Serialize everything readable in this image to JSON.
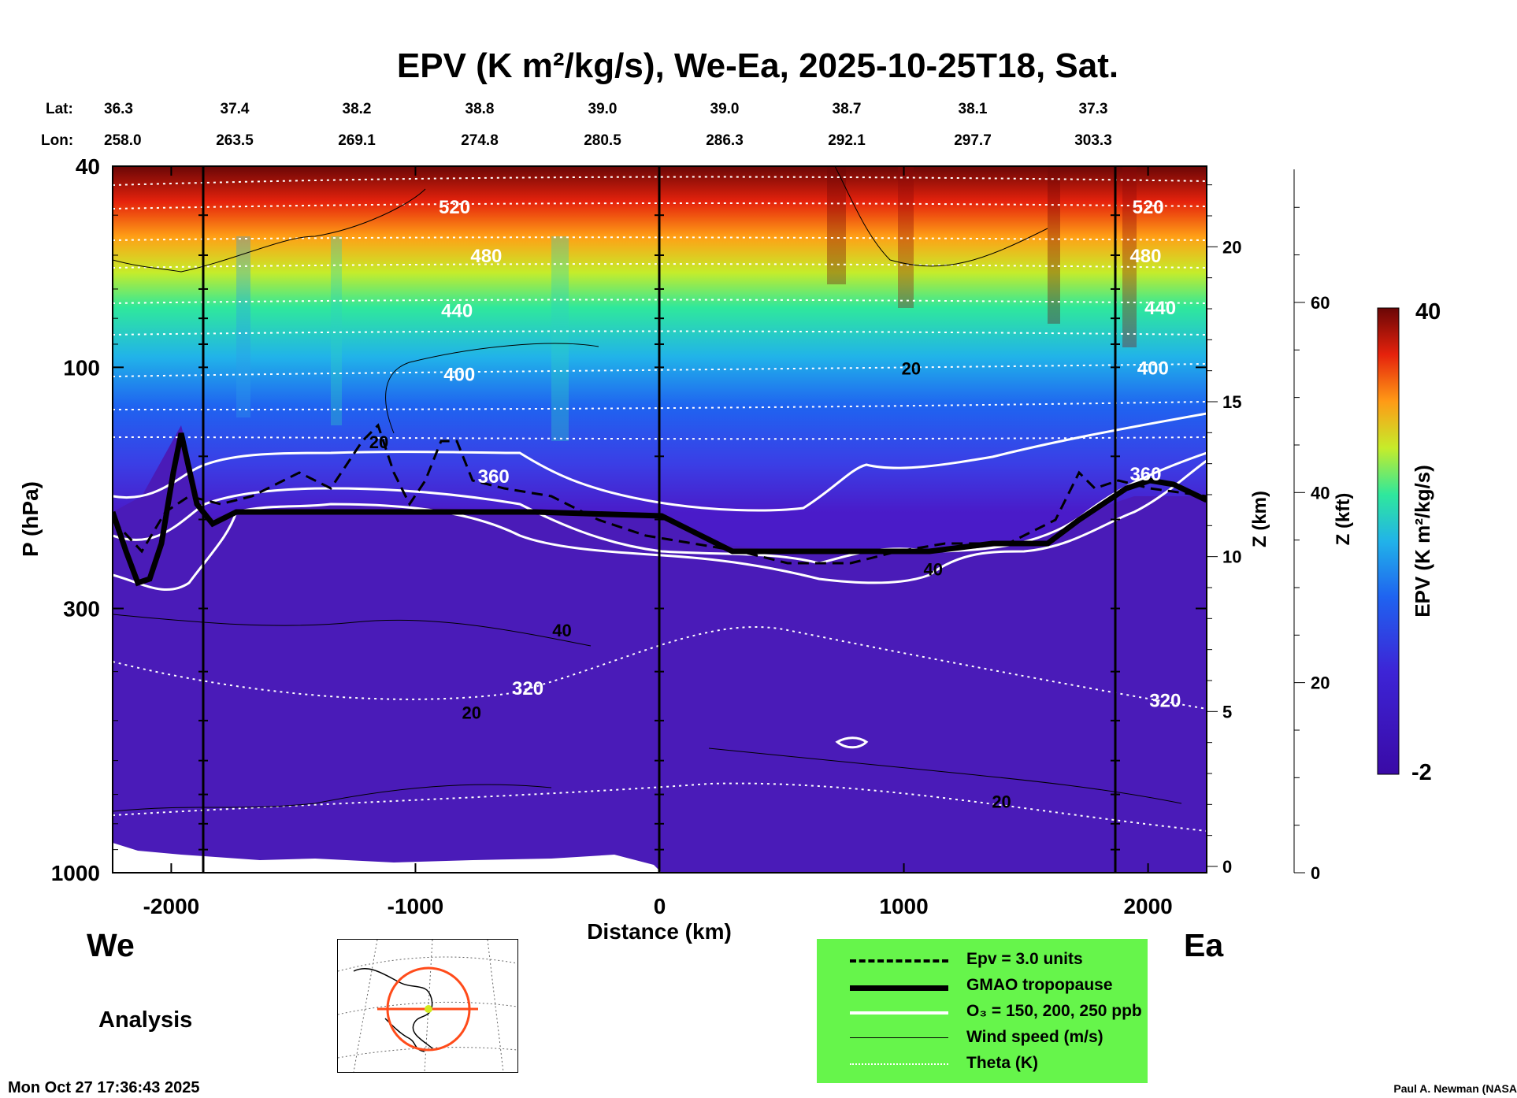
{
  "title": "EPV (K m²/kg/s), We-Ea, 2025-10-25T18, Sat.",
  "lat_label": "Lat:",
  "lon_label": "Lon:",
  "lat": [
    "36.3",
    "37.4",
    "38.2",
    "38.8",
    "39.0",
    "39.0",
    "38.7",
    "38.1",
    "37.3"
  ],
  "lon": [
    "258.0",
    "263.5",
    "269.1",
    "274.8",
    "280.5",
    "286.3",
    "292.1",
    "297.7",
    "303.3"
  ],
  "west_label": "We",
  "east_label": "Ea",
  "analysis_label": "Analysis",
  "timestamp": "Mon Oct 27 17:36:43 2025",
  "credit": "Paul A. Newman (NASA",
  "legend": [
    {
      "name": "epv-line",
      "label": "Epv = 3.0 units",
      "style": "dashed"
    },
    {
      "name": "tropopause-line",
      "label": "GMAO tropopause",
      "style": "thick"
    },
    {
      "name": "ozone-line",
      "label": "O₃ = 150, 200, 250 ppb",
      "style": "white"
    },
    {
      "name": "wind-line",
      "label": "Wind speed (m/s)",
      "style": "thin"
    },
    {
      "name": "theta-line",
      "label": "Theta (K)",
      "style": "dotted"
    }
  ],
  "chart_data": {
    "type": "heatmap",
    "title": "EPV (K m²/kg/s), We-Ea, 2025-10-25T18, Sat.",
    "xlabel": "Distance (km)",
    "ylabel": "P (hPa)",
    "xlim": [
      -2240,
      2240
    ],
    "ylim": [
      1000,
      40
    ],
    "x_ticks": [
      -2000,
      -1000,
      0,
      1000,
      2000
    ],
    "y_ticks": [
      1000,
      300,
      100,
      40
    ],
    "z_km_label": "Z (km)",
    "z_km_ticks": [
      0,
      5,
      10,
      15,
      20
    ],
    "z_kft_label": "Z (kft)",
    "z_kft_ticks": [
      0,
      20,
      40,
      60
    ],
    "colorbar": {
      "label": "EPV (K m²/kg/s)",
      "min": -2,
      "max": 40
    },
    "theta_labels": [
      {
        "text": "520",
        "x": -840,
        "p": 48
      },
      {
        "text": "480",
        "x": -710,
        "p": 60
      },
      {
        "text": "440",
        "x": -830,
        "p": 77
      },
      {
        "text": "400",
        "x": -820,
        "p": 103
      },
      {
        "text": "360",
        "x": -680,
        "p": 164
      },
      {
        "text": "320",
        "x": -540,
        "p": 430
      },
      {
        "text": "520",
        "x": 2000,
        "p": 48
      },
      {
        "text": "480",
        "x": 1990,
        "p": 60
      },
      {
        "text": "440",
        "x": 2050,
        "p": 76
      },
      {
        "text": "400",
        "x": 2020,
        "p": 100
      },
      {
        "text": "360",
        "x": 1990,
        "p": 162
      },
      {
        "text": "320",
        "x": 2070,
        "p": 455
      }
    ],
    "wind_labels": [
      {
        "text": "20",
        "x": 1030,
        "p": 100
      },
      {
        "text": "20",
        "x": -1150,
        "p": 140
      },
      {
        "text": "40",
        "x": 1120,
        "p": 250
      },
      {
        "text": "40",
        "x": -400,
        "p": 330
      },
      {
        "text": "20",
        "x": -770,
        "p": 480
      },
      {
        "text": "20",
        "x": 1400,
        "p": 720
      }
    ]
  }
}
